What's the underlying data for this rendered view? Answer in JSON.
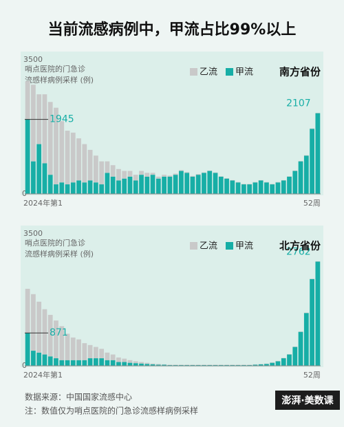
{
  "title": "当前流感病例中，甲流占比99%以上",
  "chart_data": [
    {
      "type": "stacked-bar",
      "region": "南方省份",
      "y_label": [
        "哨点医院的门急诊",
        "流感样病例采样 (例)"
      ],
      "categories": [
        "2024年第1",
        null,
        null,
        null,
        null,
        null,
        null,
        null,
        null,
        null,
        null,
        null,
        null,
        null,
        null,
        null,
        null,
        null,
        null,
        null,
        null,
        null,
        null,
        null,
        null,
        null,
        null,
        null,
        null,
        null,
        null,
        null,
        null,
        null,
        null,
        null,
        null,
        null,
        null,
        null,
        null,
        null,
        null,
        null,
        null,
        null,
        null,
        null,
        null,
        null,
        null,
        "52周"
      ],
      "ylim": [
        0,
        3500
      ],
      "yticks": [
        0,
        3500
      ],
      "series": [
        {
          "name": "乙流",
          "color": "#c9c9c9",
          "values": [
            1000,
            2000,
            1300,
            1800,
            1900,
            2000,
            1600,
            1400,
            1300,
            1100,
            1000,
            800,
            700,
            600,
            300,
            300,
            300,
            200,
            150,
            150,
            100,
            100,
            50,
            50,
            50,
            30,
            30,
            20,
            20,
            20,
            20,
            10,
            10,
            10,
            10,
            10,
            10,
            10,
            10,
            10,
            10,
            10,
            10,
            10,
            10,
            10,
            10,
            10,
            10,
            10,
            10,
            10
          ]
        },
        {
          "name": "甲流",
          "color": "#17aea6",
          "values": [
            1945,
            850,
            1300,
            800,
            500,
            250,
            300,
            250,
            300,
            350,
            300,
            350,
            300,
            250,
            550,
            450,
            350,
            400,
            450,
            350,
            500,
            450,
            500,
            400,
            450,
            450,
            500,
            600,
            550,
            450,
            500,
            550,
            600,
            550,
            450,
            400,
            350,
            300,
            250,
            250,
            300,
            350,
            300,
            250,
            300,
            350,
            450,
            600,
            850,
            1000,
            1700,
            2107
          ]
        }
      ]
    },
    {
      "type": "stacked-bar",
      "region": "北方省份",
      "y_label": [
        "哨点医院的门急诊",
        "流感样病例采样 (例)"
      ],
      "categories": [
        "2024年第1",
        null,
        null,
        null,
        null,
        null,
        null,
        null,
        null,
        null,
        null,
        null,
        null,
        null,
        null,
        null,
        null,
        null,
        null,
        null,
        null,
        null,
        null,
        null,
        null,
        null,
        null,
        null,
        null,
        null,
        null,
        null,
        null,
        null,
        null,
        null,
        null,
        null,
        null,
        null,
        null,
        null,
        null,
        null,
        null,
        null,
        null,
        null,
        null,
        null,
        null,
        "52周"
      ],
      "ylim": [
        0,
        3500
      ],
      "yticks": [
        0,
        3500
      ],
      "series": [
        {
          "name": "乙流",
          "color": "#c9c9c9",
          "values": [
            1170,
            1500,
            1350,
            1200,
            1100,
            1000,
            900,
            700,
            600,
            550,
            450,
            350,
            300,
            250,
            200,
            150,
            120,
            90,
            70,
            50,
            40,
            30,
            20,
            20,
            10,
            10,
            10,
            10,
            10,
            10,
            10,
            10,
            10,
            10,
            10,
            10,
            10,
            10,
            10,
            10,
            10,
            10,
            10,
            10,
            10,
            10,
            10,
            10,
            10,
            10,
            10,
            10
          ]
        },
        {
          "name": "甲流",
          "color": "#17aea6",
          "values": [
            871,
            400,
            350,
            300,
            250,
            200,
            150,
            150,
            150,
            150,
            150,
            200,
            200,
            200,
            150,
            150,
            100,
            100,
            80,
            70,
            60,
            50,
            40,
            30,
            30,
            20,
            20,
            20,
            20,
            20,
            20,
            20,
            20,
            20,
            20,
            20,
            20,
            20,
            20,
            20,
            30,
            40,
            50,
            80,
            120,
            200,
            300,
            500,
            900,
            1400,
            2300,
            2762
          ]
        }
      ]
    }
  ],
  "source": "数据来源：中国国家流感中心",
  "note": "注：数值仅为哨点医院的门急诊流感样病例采样",
  "logo": "澎湃·美数课"
}
